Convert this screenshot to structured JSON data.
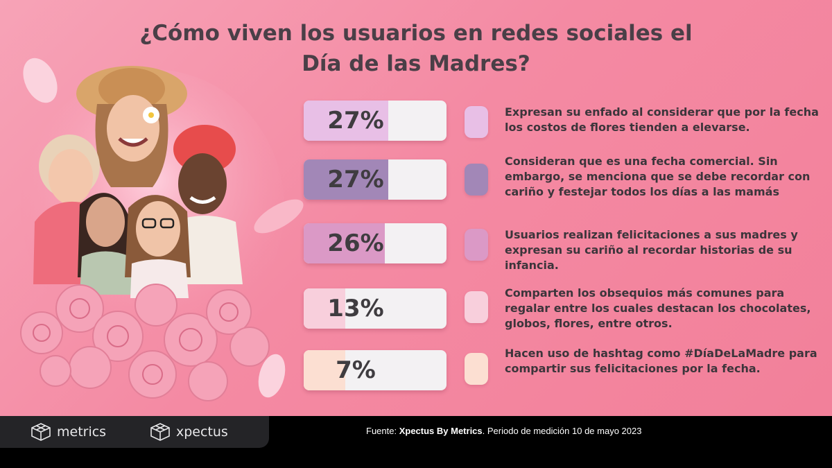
{
  "title_line1": "¿Cómo viven los usuarios en redes sociales el",
  "title_line2": "Día de las Madres?",
  "chart_data": {
    "type": "bar",
    "title": "¿Cómo viven los usuarios en redes sociales el Día de las Madres?",
    "unit": "%",
    "xlim": [
      0,
      100
    ],
    "categories": [
      "Expresan su enfado al considerar que por la fecha los costos de flores tienden a elevarse.",
      "Consideran que es una fecha comercial. Sin embargo, se menciona que se debe recordar con cariño y festejar todos los días a las mamás",
      "Usuarios realizan felicitaciones a sus madres y expresan su cariño al recordar historias de su infancia.",
      "Comparten los obsequios más comunes para regalar entre los cuales destacan los chocolates, globos, flores, entre otros.",
      "Hacen uso de hashtag como #DíaDeLaMadre para compartir sus felicitaciones por la fecha."
    ],
    "values": [
      27,
      27,
      26,
      13,
      7
    ],
    "labels": [
      "27%",
      "27%",
      "26%",
      "13%",
      "7%"
    ],
    "colors": [
      "#e8bfe6",
      "#a287b7",
      "#db99c6",
      "#f8cfdc",
      "#fcdfd2"
    ]
  },
  "footer": {
    "logo_metrics": "metrics",
    "logo_xpectus": "xpectus",
    "source_prefix": "Fuente: ",
    "source_bold": "Xpectus By Metrics",
    "source_suffix": ". Periodo de medición 10 de mayo 2023"
  },
  "icons": {
    "logo": "cube-logo-icon"
  }
}
